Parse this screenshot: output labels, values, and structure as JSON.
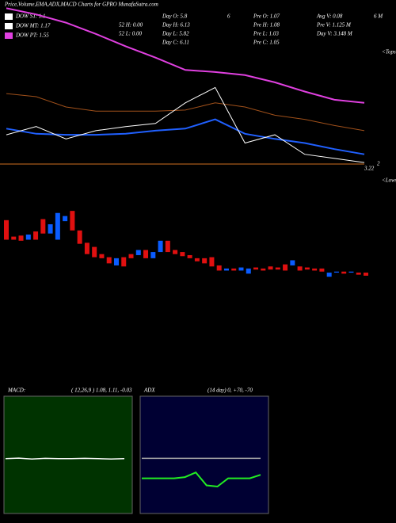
{
  "chart_data": [
    {
      "type": "candlestick",
      "title": "Price,Volume,EMA,ADX,MACD Charts for GPRO MunafaSutra.com",
      "legend": [
        "DOW ST: 1.1",
        "DOW MT: 1.17",
        "DOW PT: 1.55"
      ],
      "annotations": [
        "Day O: 5.8",
        "6",
        "Pre O: 1.07",
        "Avg V: 0.08",
        "6 M",
        "52 H: 0.00",
        "Day H: 6.13",
        "Pre H: 1.08",
        "Pre V: 1.125 M",
        "52 L: 0.00",
        "Day L: 5.82",
        "Pre L: 1.03",
        "Day V: 3.148 M",
        "Day C: 6.11",
        "Pre C: 1.05",
        "<Tops",
        "3.22",
        "2",
        "<Lows"
      ],
      "ylim": [
        0.8,
        3.65
      ],
      "up_color": "#0a5cff",
      "down_color": "#e01010",
      "open": [
        1.51,
        1.35,
        1.36,
        1.32,
        1.4,
        1.52,
        1.38,
        1.32,
        1.5,
        1.6,
        1.41,
        1.29,
        1.25,
        1.18,
        1.15,
        1.07,
        1.15,
        1.18,
        1.17,
        1.22,
        1.14,
        1.2,
        1.31,
        1.22,
        1.2,
        1.17,
        1.14,
        1.14,
        1.15,
        1.07,
        1.02,
        1.04,
        1.02,
        0.99,
        1.05,
        1.04,
        1.06,
        1.05,
        1.08,
        1.07,
        1.06,
        1.05,
        1.04,
        1.04,
        0.96,
        1.0,
        1.01,
        1.0,
        1.0,
        1.0
      ],
      "close": [
        1.32,
        1.32,
        1.31,
        1.37,
        1.32,
        1.38,
        1.47,
        1.58,
        1.55,
        1.41,
        1.28,
        1.18,
        1.15,
        1.14,
        1.09,
        1.14,
        1.06,
        1.14,
        1.22,
        1.14,
        1.2,
        1.31,
        1.2,
        1.18,
        1.16,
        1.14,
        1.11,
        1.09,
        1.06,
        1.02,
        1.04,
        1.02,
        1.05,
        1.04,
        1.03,
        1.02,
        1.03,
        1.03,
        1.02,
        1.12,
        1.02,
        1.03,
        1.02,
        1.01,
        1.0,
        1.01,
        0.99,
        1.01,
        0.98,
        0.97
      ],
      "series": [
        {
          "name": "DOW PT",
          "color": "#e040e0",
          "values": [
            3.57,
            3.51,
            3.43,
            3.32,
            3.2,
            3.09,
            2.97,
            2.95,
            2.92,
            2.85,
            2.76,
            2.68,
            2.65
          ]
        },
        {
          "name": "DOW MT",
          "color": "#a0501a",
          "values": [
            2.74,
            2.71,
            2.61,
            2.57,
            2.57,
            2.57,
            2.58,
            2.65,
            2.61,
            2.53,
            2.49,
            2.43,
            2.38
          ]
        },
        {
          "name": "DOW ST",
          "color": "#2060ff",
          "values": [
            2.4,
            2.35,
            2.34,
            2.34,
            2.35,
            2.38,
            2.4,
            2.49,
            2.35,
            2.3,
            2.26,
            2.2,
            2.15
          ]
        },
        {
          "name": "Price",
          "color": "#ffffff",
          "values": [
            2.34,
            2.42,
            2.3,
            2.38,
            2.42,
            2.45,
            2.65,
            2.8,
            2.26,
            2.34,
            2.15,
            2.11,
            2.07
          ]
        }
      ]
    },
    {
      "type": "line",
      "title": "MACD:",
      "subtitle": "( 12,26,9 ) 1.08, 1.11, -0.03",
      "ylim": [
        -1,
        3
      ],
      "series": [
        {
          "name": "MACD",
          "color": "#ffffff",
          "values": [
            0.87,
            0.89,
            0.86,
            0.88,
            0.87,
            0.87,
            0.88,
            0.87,
            0.86,
            0.87
          ]
        }
      ]
    },
    {
      "type": "line",
      "title": "ADX",
      "subtitle": "(14 day) 0, +70, -70",
      "ylim": [
        0,
        100
      ],
      "series": [
        {
          "name": "ADX",
          "color": "#22ee22",
          "values": [
            30,
            30,
            30,
            30,
            31,
            35,
            24,
            23,
            30,
            30,
            30,
            33
          ]
        },
        {
          "name": "DI",
          "color": "#aaaaaa",
          "values": [
            47,
            47,
            47,
            47,
            47,
            47,
            47,
            47,
            47,
            47,
            47,
            47
          ]
        }
      ]
    }
  ]
}
